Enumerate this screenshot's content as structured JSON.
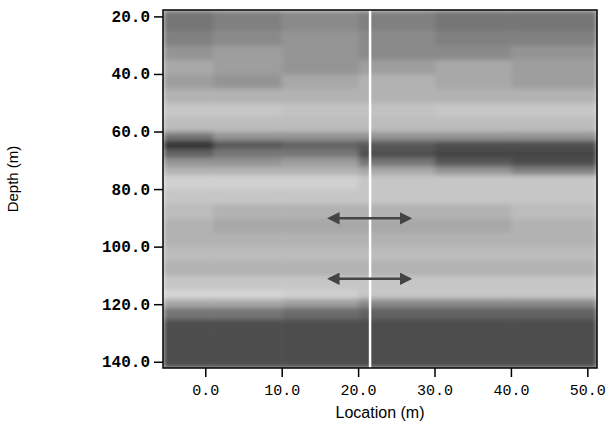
{
  "chart_data": {
    "type": "heatmap",
    "xlabel": "Location (m)",
    "ylabel": "Depth (m)",
    "xlim": [
      -5.6,
      51.2
    ],
    "ylim": [
      17.6,
      142
    ],
    "xticks": [
      {
        "value": 0,
        "label": "0.0"
      },
      {
        "value": 10,
        "label": "10.0"
      },
      {
        "value": 20,
        "label": "20.0"
      },
      {
        "value": 30,
        "label": "30.0"
      },
      {
        "value": 40,
        "label": "40.0"
      },
      {
        "value": 50,
        "label": "50.0"
      }
    ],
    "yticks": [
      {
        "value": 20,
        "label": "20.0"
      },
      {
        "value": 40,
        "label": "40.0"
      },
      {
        "value": 60,
        "label": "60.0"
      },
      {
        "value": 80,
        "label": "80.0"
      },
      {
        "value": 100,
        "label": "100.0"
      },
      {
        "value": 120,
        "label": "120.0"
      },
      {
        "value": 140,
        "label": "140.0"
      }
    ],
    "zlim": [
      0,
      1
    ],
    "x_edges": [
      -5.6,
      1,
      10,
      20,
      30,
      40,
      51.2
    ],
    "y_edges": [
      17.6,
      25,
      30,
      35,
      40,
      45,
      50,
      55,
      60,
      63,
      66,
      69,
      72,
      75,
      80,
      85,
      90,
      95,
      100,
      105,
      110,
      115,
      118,
      121,
      125,
      130,
      135,
      142
    ],
    "cells": [
      [
        0.6,
        0.55,
        0.5,
        0.55,
        0.6,
        0.6
      ],
      [
        0.55,
        0.5,
        0.45,
        0.5,
        0.55,
        0.55
      ],
      [
        0.45,
        0.4,
        0.45,
        0.5,
        0.5,
        0.45
      ],
      [
        0.35,
        0.4,
        0.45,
        0.4,
        0.35,
        0.4
      ],
      [
        0.4,
        0.45,
        0.35,
        0.3,
        0.35,
        0.4
      ],
      [
        0.3,
        0.3,
        0.3,
        0.3,
        0.3,
        0.3
      ],
      [
        0.2,
        0.2,
        0.22,
        0.22,
        0.2,
        0.2
      ],
      [
        0.25,
        0.25,
        0.25,
        0.25,
        0.25,
        0.25
      ],
      [
        0.6,
        0.45,
        0.45,
        0.45,
        0.45,
        0.45
      ],
      [
        0.95,
        0.75,
        0.7,
        0.75,
        0.8,
        0.8
      ],
      [
        0.7,
        0.6,
        0.6,
        0.8,
        0.85,
        0.85
      ],
      [
        0.45,
        0.45,
        0.4,
        0.6,
        0.75,
        0.8
      ],
      [
        0.3,
        0.3,
        0.3,
        0.35,
        0.45,
        0.55
      ],
      [
        0.15,
        0.15,
        0.15,
        0.2,
        0.2,
        0.2
      ],
      [
        0.2,
        0.2,
        0.2,
        0.2,
        0.2,
        0.2
      ],
      [
        0.25,
        0.3,
        0.3,
        0.3,
        0.3,
        0.25
      ],
      [
        0.3,
        0.35,
        0.35,
        0.35,
        0.35,
        0.3
      ],
      [
        0.3,
        0.3,
        0.3,
        0.3,
        0.3,
        0.3
      ],
      [
        0.25,
        0.25,
        0.25,
        0.25,
        0.25,
        0.25
      ],
      [
        0.3,
        0.3,
        0.3,
        0.3,
        0.3,
        0.3
      ],
      [
        0.2,
        0.2,
        0.2,
        0.2,
        0.2,
        0.2
      ],
      [
        0.12,
        0.12,
        0.15,
        0.2,
        0.2,
        0.2
      ],
      [
        0.35,
        0.35,
        0.4,
        0.5,
        0.5,
        0.5
      ],
      [
        0.6,
        0.6,
        0.65,
        0.7,
        0.7,
        0.7
      ],
      [
        0.8,
        0.8,
        0.8,
        0.8,
        0.8,
        0.8
      ],
      [
        0.8,
        0.8,
        0.8,
        0.8,
        0.8,
        0.8
      ],
      [
        0.8,
        0.8,
        0.8,
        0.8,
        0.8,
        0.8
      ]
    ],
    "vline_x": 21.5,
    "arrows": [
      {
        "y": 90,
        "x": [
          16.2,
          26.7
        ]
      },
      {
        "y": 111,
        "x": [
          16.2,
          26.7
        ]
      }
    ]
  }
}
